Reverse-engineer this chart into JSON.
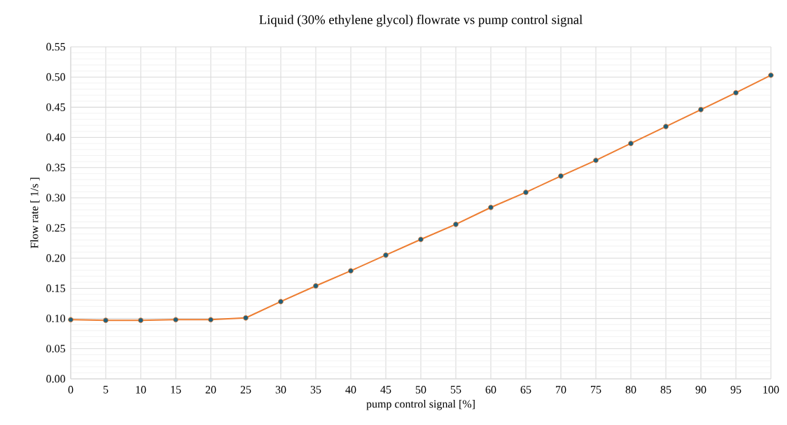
{
  "chart_data": {
    "type": "line",
    "title": "Liquid (30% ethylene glycol) flowrate vs pump control signal",
    "xlabel": "pump control signal [%]",
    "ylabel": "Flow rate [ 1/s ]",
    "x": [
      0,
      5,
      10,
      15,
      20,
      25,
      30,
      35,
      40,
      45,
      50,
      55,
      60,
      65,
      70,
      75,
      80,
      85,
      90,
      95,
      100
    ],
    "series": [
      {
        "color": "#ed7d31",
        "values": [
          0.098,
          0.097,
          0.097,
          0.098,
          0.098,
          0.101,
          0.128,
          0.154,
          0.179,
          0.205,
          0.231,
          0.256,
          0.284,
          0.309,
          0.336,
          0.362,
          0.39,
          0.418,
          0.446,
          0.474,
          0.503
        ]
      }
    ],
    "xlim": [
      0,
      100
    ],
    "xticks": [
      0,
      5,
      10,
      15,
      20,
      25,
      30,
      35,
      40,
      45,
      50,
      55,
      60,
      65,
      70,
      75,
      80,
      85,
      90,
      95,
      100
    ],
    "ylim": [
      0,
      0.55
    ],
    "yticks": [
      {
        "value": 0,
        "label": "0.00"
      },
      {
        "value": 0.05,
        "label": "0.05"
      },
      {
        "value": 0.1,
        "label": "0.10"
      },
      {
        "value": 0.15,
        "label": "0.15"
      },
      {
        "value": 0.2,
        "label": "0.20"
      },
      {
        "value": 0.25,
        "label": "0.25"
      },
      {
        "value": 0.3,
        "label": "0.30"
      },
      {
        "value": 0.35,
        "label": "0.35"
      },
      {
        "value": 0.4,
        "label": "0.40"
      },
      {
        "value": 0.45,
        "label": "0.45"
      },
      {
        "value": 0.5,
        "label": "0.50"
      },
      {
        "value": 0.55,
        "label": "0.55"
      }
    ],
    "grid": true,
    "marker": "circle",
    "line_style": "solid"
  }
}
